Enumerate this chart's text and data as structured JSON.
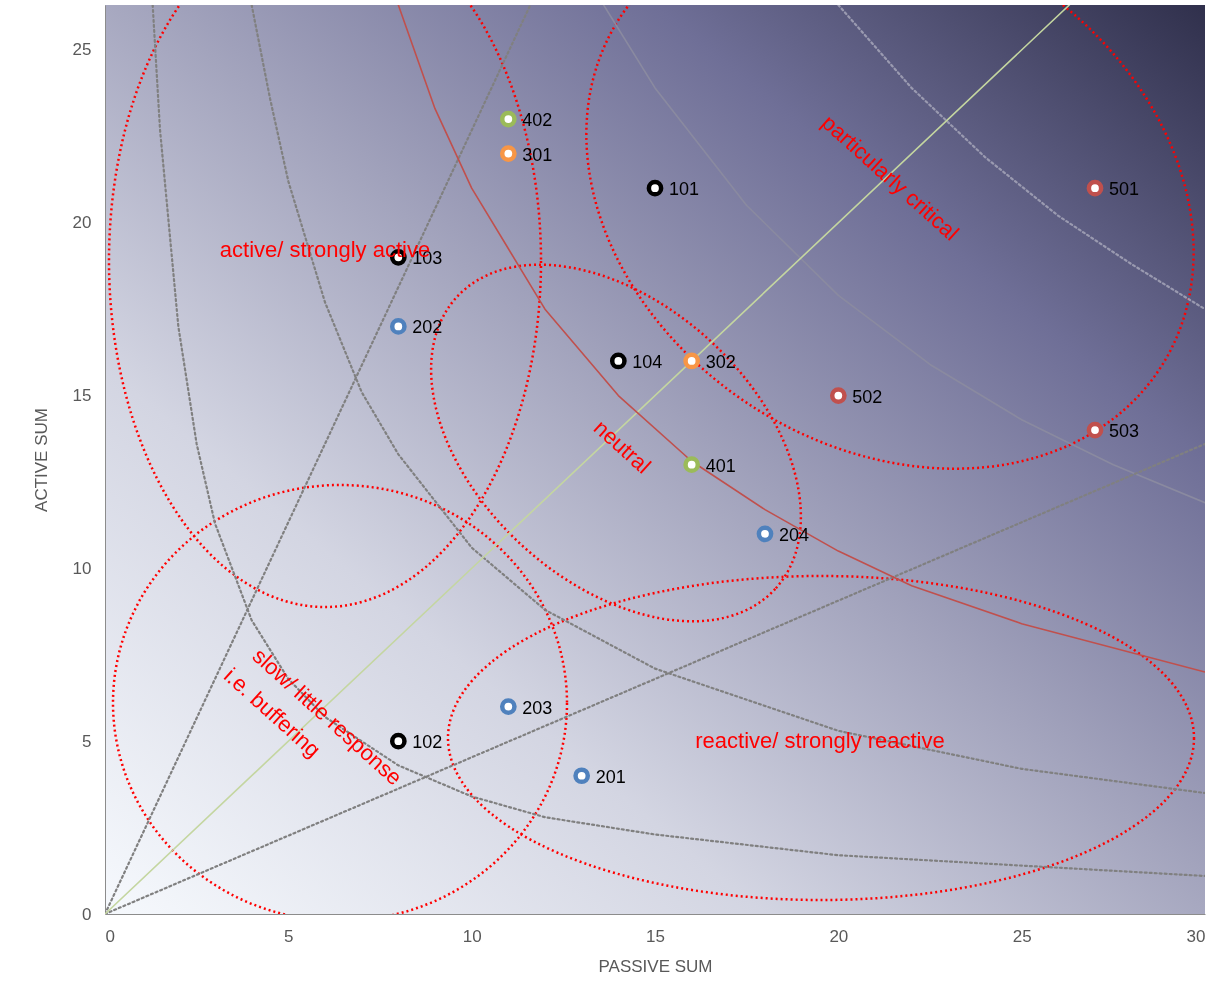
{
  "chart_data": {
    "type": "scatter",
    "xlabel": "PASSIVE SUM",
    "ylabel": "ACTIVE SUM",
    "xlim": [
      0,
      30
    ],
    "ylim": [
      0,
      26.3
    ],
    "xticks": [
      0,
      5,
      10,
      15,
      20,
      25,
      30
    ],
    "yticks": [
      0,
      5,
      10,
      15,
      20,
      25
    ],
    "marker": "circle",
    "series": [
      {
        "type": "line",
        "marker": "none",
        "color": "#808080",
        "line_style": "dotted",
        "x": [
          1.3,
          1.5,
          2,
          2.5,
          3,
          4,
          5,
          6,
          8,
          10,
          12,
          15,
          20,
          25,
          30
        ],
        "values": [
          26.3,
          22.7,
          17,
          13.6,
          11.3,
          8.5,
          6.8,
          5.7,
          4.3,
          3.4,
          2.8,
          2.3,
          1.7,
          1.4,
          1.1
        ]
      },
      {
        "type": "line",
        "marker": "none",
        "color": "#808080",
        "line_style": "dotted",
        "x": [
          4,
          4.5,
          5,
          6,
          7,
          8,
          10,
          12,
          15,
          20,
          25,
          30
        ],
        "values": [
          26.3,
          23.6,
          21.2,
          17.7,
          15.1,
          13.3,
          10.6,
          8.8,
          7.1,
          5.3,
          4.2,
          3.5
        ]
      },
      {
        "type": "line",
        "marker": "none",
        "color": "#8a8aa0",
        "line_style": "solid",
        "x": [
          13.6,
          15,
          17.5,
          20,
          22.5,
          25,
          27.5,
          30
        ],
        "values": [
          26.3,
          23.9,
          20.5,
          17.9,
          15.9,
          14.3,
          13,
          11.9
        ]
      },
      {
        "type": "line",
        "marker": "none",
        "color": "#9a9ab0",
        "line_style": "dotted",
        "x": [
          20,
          22,
          24,
          26,
          28,
          30
        ],
        "values": [
          26.3,
          23.9,
          21.9,
          20.2,
          18.8,
          17.5
        ]
      },
      {
        "type": "line",
        "marker": "none",
        "color": "#808080",
        "line_style": "dotted",
        "x": [
          0,
          11.6
        ],
        "values": [
          0,
          26.3
        ]
      },
      {
        "type": "line",
        "marker": "none",
        "color": "#808080",
        "line_style": "dotted",
        "x": [
          0,
          30
        ],
        "values": [
          0,
          13.6
        ]
      },
      {
        "type": "line",
        "marker": "none",
        "color": "#c4d6a0",
        "line_style": "solid",
        "x": [
          0,
          26.3
        ],
        "values": [
          0,
          26.3
        ]
      },
      {
        "type": "line",
        "marker": "none",
        "color": "#c0504d",
        "line_style": "solid",
        "x": [
          8,
          9,
          10,
          12,
          14,
          16,
          18,
          20,
          22,
          25,
          30
        ],
        "values": [
          26.3,
          23.3,
          21,
          17.5,
          15,
          13.1,
          11.7,
          10.5,
          9.5,
          8.4,
          7
        ]
      },
      {
        "color": "#000000",
        "x": [
          15,
          8,
          8,
          14
        ],
        "values": [
          21,
          5,
          19,
          16
        ]
      },
      {
        "color": "#4f81bd",
        "x": [
          13,
          8,
          11,
          18
        ],
        "values": [
          4,
          17,
          6,
          11
        ]
      },
      {
        "color": "#f79646",
        "x": [
          11,
          16
        ],
        "values": [
          22,
          16
        ]
      },
      {
        "color": "#9bbb59",
        "x": [
          16,
          11
        ],
        "values": [
          13,
          23
        ]
      },
      {
        "color": "#c0504d",
        "x": [
          27,
          20,
          27
        ],
        "values": [
          21,
          15,
          14
        ]
      }
    ],
    "annotations": [
      {
        "text": "101",
        "x": 15,
        "y": 21
      },
      {
        "text": "102",
        "x": 8,
        "y": 5
      },
      {
        "text": "103",
        "x": 8,
        "y": 19
      },
      {
        "text": "104",
        "x": 14,
        "y": 16
      },
      {
        "text": "201",
        "x": 13,
        "y": 4
      },
      {
        "text": "202",
        "x": 8,
        "y": 17
      },
      {
        "text": "203",
        "x": 11,
        "y": 6
      },
      {
        "text": "204",
        "x": 18,
        "y": 11
      },
      {
        "text": "301",
        "x": 11,
        "y": 22
      },
      {
        "text": "302",
        "x": 16,
        "y": 16
      },
      {
        "text": "401",
        "x": 16,
        "y": 13
      },
      {
        "text": "402",
        "x": 11,
        "y": 23
      },
      {
        "text": "501",
        "x": 27,
        "y": 21
      },
      {
        "text": "502",
        "x": 20,
        "y": 15
      },
      {
        "text": "503",
        "x": 27,
        "y": 14
      },
      "active/ strongly active",
      "particularly critical",
      "neutral",
      "slow/ little response",
      "i.e. buffering",
      "reactive/ strongly reactive"
    ]
  }
}
